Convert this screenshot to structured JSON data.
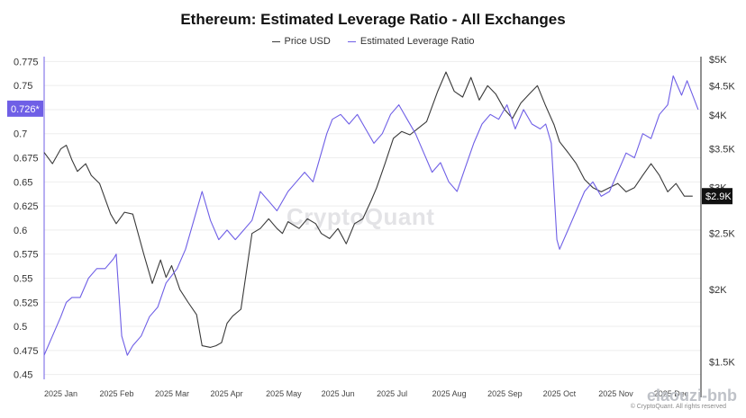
{
  "chart_data": {
    "type": "line",
    "title": "Ethereum: Estimated Leverage Ratio - All Exchanges",
    "legend": [
      "Price USD",
      "Estimated Leverage Ratio"
    ],
    "legend_position": "top-center",
    "colors": {
      "price": "#3a3a3a",
      "leverage": "#6f5fe6",
      "badge_bg": "#111111",
      "badge_left_bg": "#6f5fe6",
      "grid": "#eeeeee"
    },
    "x_labels": [
      "2025 Jan",
      "2025 Feb",
      "2025 Mar",
      "2025 Apr",
      "2025 May",
      "2025 Jun",
      "2025 Jul",
      "2025 Aug",
      "2025 Sep",
      "2025 Oct",
      "2025 Nov",
      "2025 Dec"
    ],
    "x_range": [
      0,
      11.85
    ],
    "y_left": {
      "range": [
        0.445,
        0.78
      ],
      "ticks": [
        "0.775",
        "0.75",
        "0.725",
        "0.7",
        "0.675",
        "0.65",
        "0.625",
        "0.6",
        "0.575",
        "0.55",
        "0.525",
        "0.5",
        "0.475",
        "0.45"
      ],
      "tick_values": [
        0.775,
        0.75,
        0.725,
        0.7,
        0.675,
        0.65,
        0.625,
        0.6,
        0.575,
        0.55,
        0.525,
        0.5,
        0.475,
        0.45
      ]
    },
    "y_right": {
      "scale": "log",
      "range": [
        1400,
        5050
      ],
      "ticks": [
        "$5K",
        "$4.5K",
        "$4K",
        "$3.5K",
        "$3K",
        "$2.5K",
        "$2K",
        "$1.5K"
      ],
      "tick_values": [
        5000,
        4500,
        4000,
        3500,
        3000,
        2500,
        2000,
        1500
      ]
    },
    "current_leverage_label": "0.726*",
    "current_leverage_value": 0.726,
    "current_price_label": "$2.9K",
    "current_price_value": 2900,
    "series": [
      {
        "name": "Price USD",
        "axis": "right",
        "x": [
          0,
          0.15,
          0.3,
          0.4,
          0.5,
          0.6,
          0.75,
          0.85,
          1.0,
          1.2,
          1.3,
          1.45,
          1.6,
          1.8,
          1.95,
          2.1,
          2.2,
          2.3,
          2.45,
          2.6,
          2.75,
          2.85,
          3.0,
          3.1,
          3.2,
          3.3,
          3.4,
          3.55,
          3.75,
          3.9,
          4.05,
          4.2,
          4.3,
          4.4,
          4.6,
          4.75,
          4.9,
          5.0,
          5.15,
          5.3,
          5.45,
          5.6,
          5.75,
          5.9,
          6.0,
          6.15,
          6.3,
          6.45,
          6.6,
          6.75,
          6.9,
          7.1,
          7.25,
          7.4,
          7.55,
          7.7,
          7.85,
          8.0,
          8.15,
          8.3,
          8.45,
          8.6,
          8.75,
          8.9,
          9.05,
          9.2,
          9.3,
          9.45,
          9.6,
          9.75,
          9.9,
          10.05,
          10.2,
          10.35,
          10.5,
          10.65,
          10.8,
          10.95,
          11.1,
          11.25,
          11.4,
          11.55,
          11.7
        ],
        "values": [
          3450,
          3300,
          3500,
          3550,
          3350,
          3200,
          3300,
          3150,
          3050,
          2700,
          2600,
          2720,
          2700,
          2300,
          2050,
          2250,
          2100,
          2200,
          2000,
          1900,
          1810,
          1600,
          1590,
          1600,
          1620,
          1750,
          1800,
          1850,
          2500,
          2550,
          2650,
          2550,
          2500,
          2620,
          2550,
          2650,
          2600,
          2500,
          2450,
          2550,
          2400,
          2600,
          2650,
          2850,
          3000,
          3300,
          3650,
          3750,
          3700,
          3800,
          3900,
          4400,
          4750,
          4400,
          4300,
          4650,
          4250,
          4500,
          4350,
          4100,
          3950,
          4200,
          4350,
          4500,
          4150,
          3850,
          3600,
          3450,
          3300,
          3100,
          3000,
          2950,
          3000,
          3050,
          2950,
          3000,
          3150,
          3300,
          3150,
          2950,
          3050,
          2900,
          2900
        ]
      },
      {
        "name": "Estimated Leverage Ratio",
        "axis": "left",
        "x": [
          0,
          0.15,
          0.3,
          0.4,
          0.5,
          0.65,
          0.8,
          0.95,
          1.1,
          1.25,
          1.3,
          1.4,
          1.5,
          1.6,
          1.75,
          1.9,
          2.05,
          2.2,
          2.4,
          2.55,
          2.7,
          2.85,
          3.0,
          3.15,
          3.3,
          3.45,
          3.6,
          3.75,
          3.9,
          4.05,
          4.2,
          4.4,
          4.55,
          4.7,
          4.85,
          5.0,
          5.1,
          5.2,
          5.35,
          5.5,
          5.65,
          5.8,
          5.95,
          6.1,
          6.25,
          6.4,
          6.55,
          6.7,
          6.85,
          7.0,
          7.15,
          7.3,
          7.45,
          7.6,
          7.75,
          7.9,
          8.05,
          8.2,
          8.35,
          8.5,
          8.65,
          8.8,
          8.95,
          9.05,
          9.15,
          9.25,
          9.3,
          9.45,
          9.6,
          9.75,
          9.9,
          10.05,
          10.2,
          10.35,
          10.5,
          10.65,
          10.8,
          10.95,
          11.1,
          11.25,
          11.35,
          11.5,
          11.6,
          11.7,
          11.8
        ],
        "values": [
          0.47,
          0.49,
          0.51,
          0.525,
          0.53,
          0.53,
          0.55,
          0.56,
          0.56,
          0.57,
          0.575,
          0.49,
          0.47,
          0.48,
          0.49,
          0.51,
          0.52,
          0.545,
          0.56,
          0.58,
          0.61,
          0.64,
          0.61,
          0.59,
          0.6,
          0.59,
          0.6,
          0.61,
          0.64,
          0.63,
          0.62,
          0.64,
          0.65,
          0.66,
          0.65,
          0.68,
          0.7,
          0.715,
          0.72,
          0.71,
          0.72,
          0.705,
          0.69,
          0.7,
          0.72,
          0.73,
          0.715,
          0.7,
          0.68,
          0.66,
          0.67,
          0.65,
          0.64,
          0.665,
          0.69,
          0.71,
          0.72,
          0.715,
          0.73,
          0.705,
          0.725,
          0.71,
          0.705,
          0.71,
          0.69,
          0.59,
          0.58,
          0.6,
          0.62,
          0.64,
          0.65,
          0.635,
          0.64,
          0.66,
          0.68,
          0.675,
          0.7,
          0.695,
          0.72,
          0.73,
          0.76,
          0.74,
          0.755,
          0.74,
          0.725
        ]
      }
    ]
  },
  "watermark": "CryptoQuant",
  "corner_logo": "elaouzi-bnb",
  "copyright": "© CryptoQuant. All rights reserved"
}
